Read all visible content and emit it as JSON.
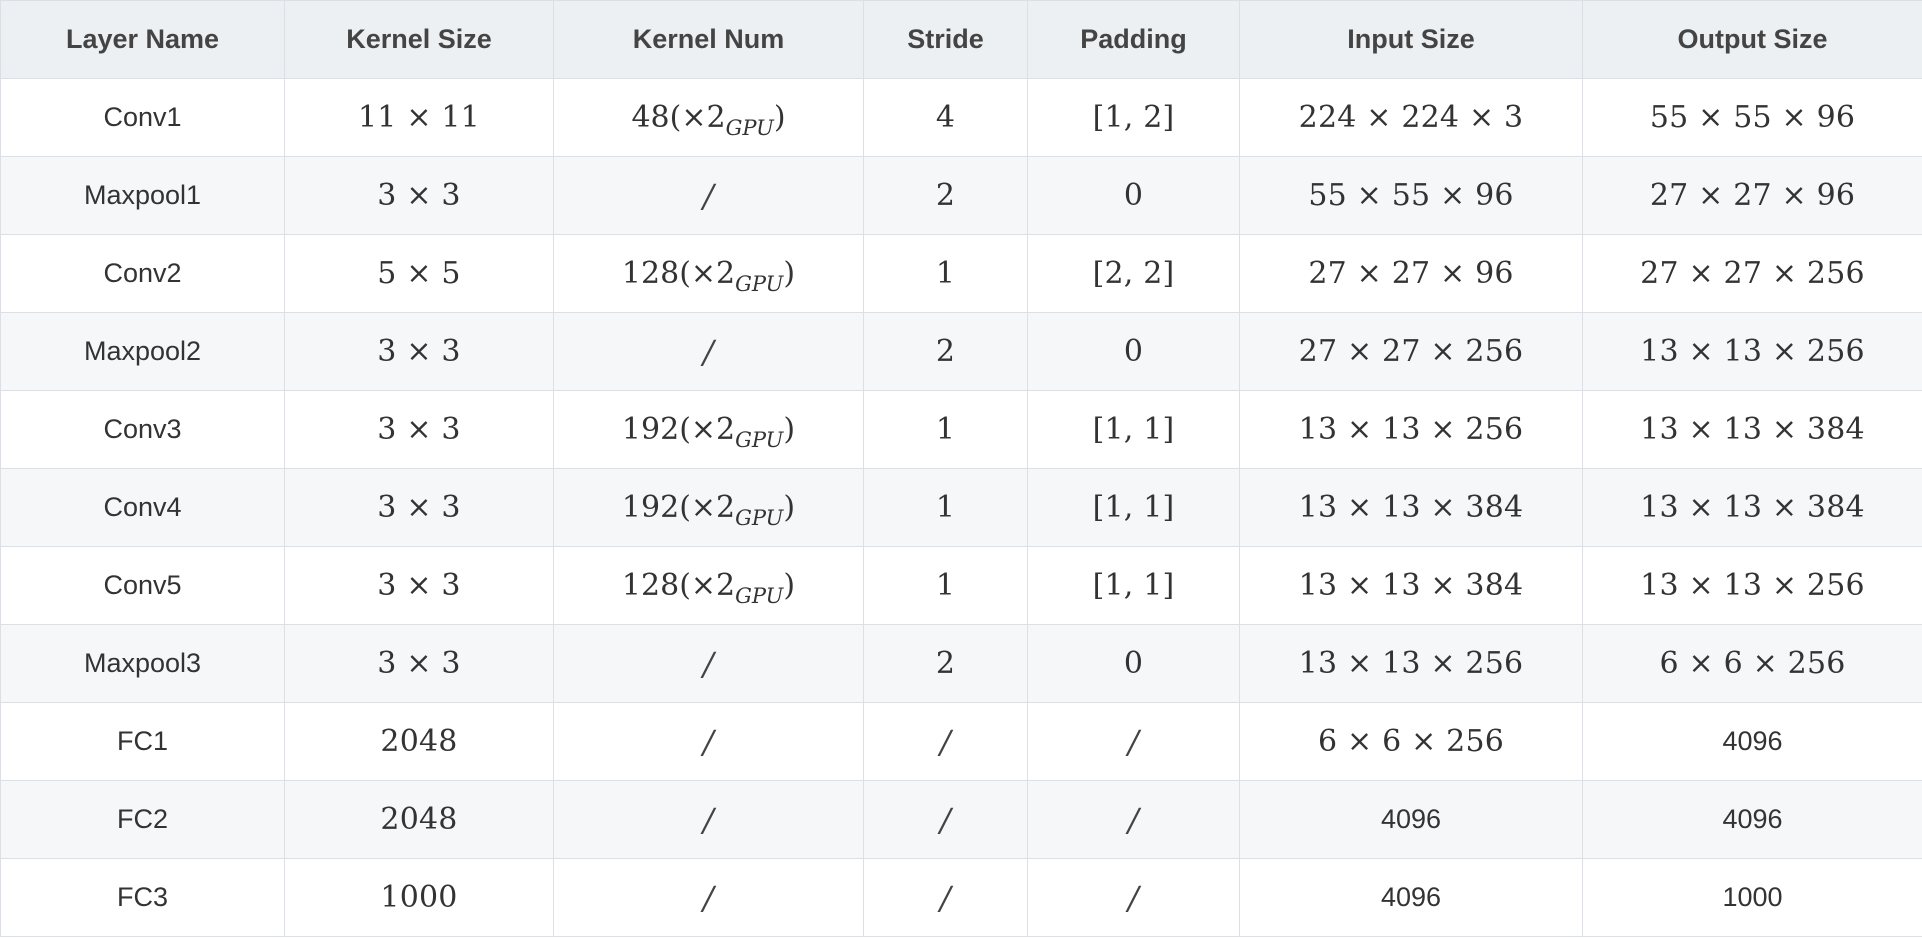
{
  "columns": [
    "Layer Name",
    "Kernel Size",
    "Kernel Num",
    "Stride",
    "Padding",
    "Input Size",
    "Output Size"
  ],
  "rows": [
    {
      "layer": "Conv1",
      "kernel_size": "11 × 11",
      "kernel_num": {
        "count": "48",
        "suffix": "(×2",
        "gpu": "GPU",
        "close": ")"
      },
      "stride": "4",
      "padding": "[1, 2]",
      "input": "224 × 224 × 3",
      "output": "55 × 55 × 96"
    },
    {
      "layer": "Maxpool1",
      "kernel_size": "3 × 3",
      "kernel_num": "/",
      "stride": "2",
      "padding": "0",
      "input": "55 × 55 × 96",
      "output": "27 × 27 × 96"
    },
    {
      "layer": "Conv2",
      "kernel_size": "5 × 5",
      "kernel_num": {
        "count": "128",
        "suffix": "(×2",
        "gpu": "GPU",
        "close": ")"
      },
      "stride": "1",
      "padding": "[2, 2]",
      "input": "27 × 27 × 96",
      "output": "27 × 27 × 256"
    },
    {
      "layer": "Maxpool2",
      "kernel_size": "3 × 3",
      "kernel_num": "/",
      "stride": "2",
      "padding": "0",
      "input": "27 × 27 × 256",
      "output": "13 × 13 × 256"
    },
    {
      "layer": "Conv3",
      "kernel_size": "3 × 3",
      "kernel_num": {
        "count": "192",
        "suffix": "(×2",
        "gpu": "GPU",
        "close": ")"
      },
      "stride": "1",
      "padding": "[1, 1]",
      "input": "13 × 13 × 256",
      "output": "13 × 13 × 384"
    },
    {
      "layer": "Conv4",
      "kernel_size": "3 × 3",
      "kernel_num": {
        "count": "192",
        "suffix": "(×2",
        "gpu": "GPU",
        "close": ")"
      },
      "stride": "1",
      "padding": "[1, 1]",
      "input": "13 × 13 × 384",
      "output": "13 × 13 × 384"
    },
    {
      "layer": "Conv5",
      "kernel_size": "3 × 3",
      "kernel_num": {
        "count": "128",
        "suffix": "(×2",
        "gpu": "GPU",
        "close": ")"
      },
      "stride": "1",
      "padding": "[1, 1]",
      "input": "13 × 13 × 384",
      "output": "13 × 13 × 256"
    },
    {
      "layer": "Maxpool3",
      "kernel_size": "3 × 3",
      "kernel_num": "/",
      "stride": "2",
      "padding": "0",
      "input": "13 × 13 × 256",
      "output": "6 × 6 × 256"
    },
    {
      "layer": "FC1",
      "kernel_size": "2048",
      "kernel_num": "/",
      "stride": "/",
      "padding": "/",
      "input": "6 × 6 × 256",
      "output": "4096"
    },
    {
      "layer": "FC2",
      "kernel_size": "2048",
      "kernel_num": "/",
      "stride": "/",
      "padding": "/",
      "input": "4096",
      "output": "4096"
    },
    {
      "layer": "FC3",
      "kernel_size": "1000",
      "kernel_num": "/",
      "stride": "/",
      "padding": "/",
      "input": "4096",
      "output": "1000"
    }
  ],
  "colors": {
    "header_bg": "#edf0f3",
    "row_alt_bg": "#f6f7f8",
    "border": "#dcdfe3",
    "text": "#333333"
  }
}
